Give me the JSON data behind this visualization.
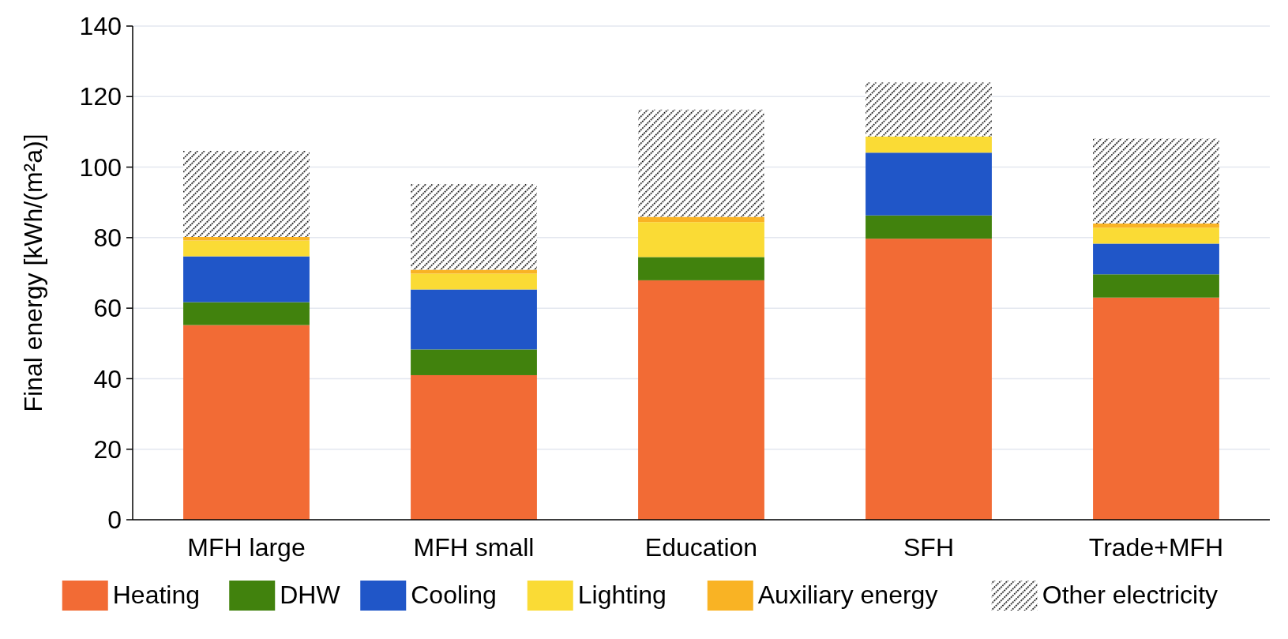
{
  "chart_data": {
    "type": "bar",
    "stacked": true,
    "ylabel": "Final energy [kWh/(m²a)]",
    "categories": [
      "MFH large",
      "MFH small",
      "Education",
      "SFH",
      "Trade+MFH"
    ],
    "series": [
      {
        "name": "Heating",
        "color": "#f26b35",
        "values": [
          55.2,
          41.0,
          67.9,
          79.7,
          63.0
        ]
      },
      {
        "name": "DHW",
        "color": "#41820d",
        "values": [
          6.5,
          7.3,
          6.6,
          6.6,
          6.6
        ]
      },
      {
        "name": "Cooling",
        "color": "#2056c8",
        "values": [
          13.0,
          17.0,
          0,
          17.8,
          8.7
        ]
      },
      {
        "name": "Lighting",
        "color": "#fadb35",
        "values": [
          4.5,
          4.5,
          9.9,
          4.6,
          4.5
        ]
      },
      {
        "name": "Auxiliary energy",
        "color": "#f9b324",
        "values": [
          1.0,
          1.1,
          1.5,
          0,
          1.2
        ]
      },
      {
        "name": "Other electricity",
        "color": "#000000",
        "values": [
          24.4,
          24.3,
          30.4,
          15.3,
          24.1
        ]
      }
    ],
    "ylim": [
      0,
      140
    ],
    "yticks": [
      0,
      20,
      40,
      60,
      80,
      100,
      120,
      140
    ],
    "grid": "y",
    "legend": "bottom"
  }
}
